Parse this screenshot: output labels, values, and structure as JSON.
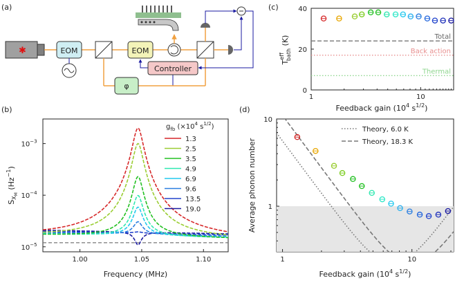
{
  "panels": {
    "a": {
      "label": "(a)",
      "blocks": {
        "eom1": "EOM",
        "eom2": "EOM",
        "controller": "Controller",
        "phi": "φ"
      }
    },
    "b": {
      "label": "(b)"
    },
    "c": {
      "label": "(c)"
    },
    "d": {
      "label": "(d)"
    }
  },
  "chart_data": [
    {
      "id": "panel-b",
      "type": "line",
      "xlabel": "Frequency (MHz)",
      "ylabel": "S_{X_M} (Hz^{-1})",
      "xlim": [
        0.97,
        1.12
      ],
      "ylim_log": [
        8e-06,
        0.003
      ],
      "y_scale": "log",
      "xticks": [
        "1.00",
        "1.05",
        "1.10"
      ],
      "yticks": [
        "10^-5",
        "10^-4",
        "10^-3"
      ],
      "background_level": 1.2e-05,
      "legend_title": "g_fb (×10^4 s^{1/2})",
      "legend_position": "top-right",
      "series": [
        {
          "name": "1.3",
          "color": "#d62728",
          "peak": 0.002,
          "base": 1.6e-05
        },
        {
          "name": "2.5",
          "color": "#9acd32",
          "peak": 0.001,
          "base": 1.65e-05
        },
        {
          "name": "3.5",
          "color": "#22c022",
          "peak": 0.00023,
          "base": 1.7e-05
        },
        {
          "name": "4.9",
          "color": "#2ee8b0",
          "peak": 0.0001,
          "base": 1.75e-05
        },
        {
          "name": "6.9",
          "color": "#22c8ee",
          "peak": 6e-05,
          "base": 1.8e-05
        },
        {
          "name": "9.6",
          "color": "#2b7fe0",
          "peak": 3.2e-05,
          "base": 1.9e-05
        },
        {
          "name": "13.5",
          "color": "#2244cc",
          "peak": 2.1e-05,
          "base": 2e-05
        },
        {
          "name": "19.0",
          "color": "#1a1aa0",
          "peak": 1.25e-05,
          "base": 2.1e-05
        }
      ]
    },
    {
      "id": "panel-c",
      "type": "scatter",
      "xlabel": "Feedback gain (10^4 s^{1/2})",
      "ylabel": "T_bath^eff (K)",
      "x_scale": "log",
      "xlim": [
        1,
        20
      ],
      "ylim": [
        0,
        40
      ],
      "yticks": [
        "0",
        "20",
        "40"
      ],
      "xticks": [
        "1",
        "10"
      ],
      "points": [
        {
          "x": 1.3,
          "y": 35,
          "color": "#d62728"
        },
        {
          "x": 1.8,
          "y": 35,
          "color": "#e8a600"
        },
        {
          "x": 2.5,
          "y": 36,
          "color": "#9acd32"
        },
        {
          "x": 2.9,
          "y": 37,
          "color": "#7ccd20"
        },
        {
          "x": 3.5,
          "y": 38,
          "color": "#22c022"
        },
        {
          "x": 4.1,
          "y": 38,
          "color": "#22c022"
        },
        {
          "x": 4.9,
          "y": 37,
          "color": "#2ee8b0"
        },
        {
          "x": 5.9,
          "y": 37,
          "color": "#2ee8c8"
        },
        {
          "x": 6.9,
          "y": 37,
          "color": "#22c8ee"
        },
        {
          "x": 8.1,
          "y": 36,
          "color": "#2bb0ee"
        },
        {
          "x": 9.6,
          "y": 36,
          "color": "#2b7fe0"
        },
        {
          "x": 11.5,
          "y": 35,
          "color": "#2266dd"
        },
        {
          "x": 13.5,
          "y": 34,
          "color": "#2244cc"
        },
        {
          "x": 16,
          "y": 34,
          "color": "#2233bb"
        },
        {
          "x": 19.0,
          "y": 34,
          "color": "#1a1aa0"
        }
      ],
      "reference_lines": [
        {
          "name": "Total",
          "y": 24,
          "color": "#777777",
          "style": "dashed"
        },
        {
          "name": "Back action",
          "y": 17,
          "color": "#e88f8f",
          "style": "dotted"
        },
        {
          "name": "Thermal",
          "y": 7,
          "color": "#8fd68f",
          "style": "dotted"
        }
      ]
    },
    {
      "id": "panel-d",
      "type": "scatter",
      "xlabel": "Feedback gain (10^4 s^{1/2})",
      "ylabel": "Average phonon number",
      "x_scale": "log",
      "y_scale": "log",
      "xlim": [
        0.9,
        21
      ],
      "ylim": [
        0.3,
        10
      ],
      "xticks": [
        "1",
        "10"
      ],
      "yticks": [
        "1",
        "10"
      ],
      "shaded_below": 1,
      "legend_position": "top-right",
      "points": [
        {
          "x": 1.3,
          "y": 6.2,
          "color": "#d62728"
        },
        {
          "x": 1.8,
          "y": 4.3,
          "color": "#e8a600"
        },
        {
          "x": 2.5,
          "y": 2.9,
          "color": "#9acd32"
        },
        {
          "x": 2.9,
          "y": 2.4,
          "color": "#7ccd20"
        },
        {
          "x": 3.5,
          "y": 2.05,
          "color": "#22c022"
        },
        {
          "x": 4.1,
          "y": 1.7,
          "color": "#22c022"
        },
        {
          "x": 4.9,
          "y": 1.42,
          "color": "#2ee8b0"
        },
        {
          "x": 5.9,
          "y": 1.2,
          "color": "#2ee8c8"
        },
        {
          "x": 6.9,
          "y": 1.07,
          "color": "#22c8ee"
        },
        {
          "x": 8.1,
          "y": 0.95,
          "color": "#2bb0ee"
        },
        {
          "x": 9.6,
          "y": 0.87,
          "color": "#2b7fe0"
        },
        {
          "x": 11.5,
          "y": 0.8,
          "color": "#2266dd"
        },
        {
          "x": 13.5,
          "y": 0.77,
          "color": "#2244cc"
        },
        {
          "x": 16,
          "y": 0.8,
          "color": "#2233bb"
        },
        {
          "x": 19.0,
          "y": 0.88,
          "color": "#1a1aa0"
        }
      ],
      "theory": [
        {
          "name": "Theory, 6.0 K",
          "style": "dotted",
          "color": "#777777"
        },
        {
          "name": "Theory, 18.3 K",
          "style": "dashed",
          "color": "#777777"
        }
      ]
    }
  ]
}
